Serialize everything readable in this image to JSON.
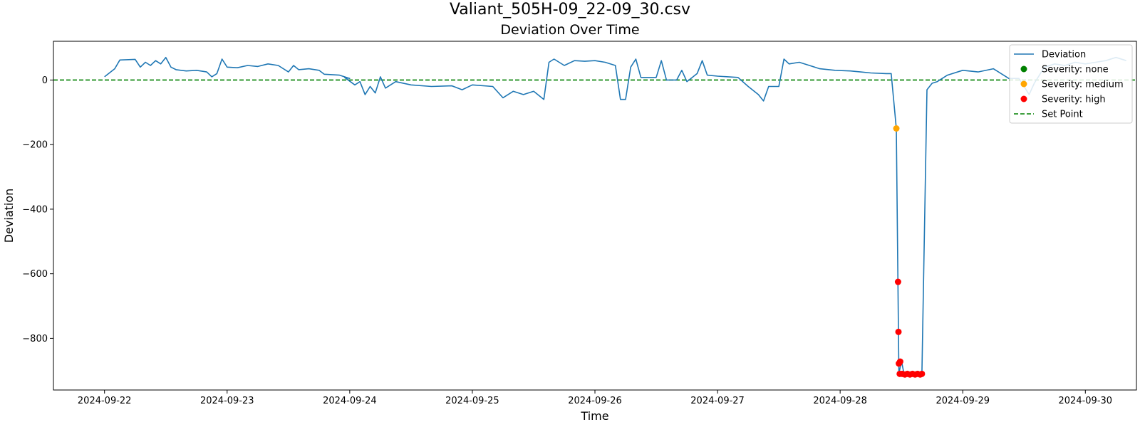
{
  "figure": {
    "suptitle": "Valiant_505H-09_22-09_30.csv"
  },
  "chart_data": {
    "type": "line",
    "title": "Deviation Over Time",
    "xlabel": "Time",
    "ylabel": "Deviation",
    "xlim": [
      "2024-09-21T14:00",
      "2024-09-30T10:00"
    ],
    "ylim": [
      -960,
      120
    ],
    "x_ticks": [
      "2024-09-22",
      "2024-09-23",
      "2024-09-24",
      "2024-09-25",
      "2024-09-26",
      "2024-09-27",
      "2024-09-28",
      "2024-09-29",
      "2024-09-30"
    ],
    "y_ticks": [
      0,
      -200,
      -400,
      -600,
      -800
    ],
    "grid": false,
    "legend_position": "top-right",
    "set_point": {
      "name": "Set Point",
      "value": 0,
      "color": "#008000",
      "style": "dashed"
    },
    "series": [
      {
        "name": "Deviation",
        "color": "#1f77b4",
        "points": [
          [
            "2024-09-22T00:00",
            10
          ],
          [
            "2024-09-22T02:00",
            35
          ],
          [
            "2024-09-22T03:00",
            62
          ],
          [
            "2024-09-22T06:00",
            64
          ],
          [
            "2024-09-22T07:00",
            40
          ],
          [
            "2024-09-22T08:00",
            55
          ],
          [
            "2024-09-22T09:00",
            45
          ],
          [
            "2024-09-22T10:00",
            60
          ],
          [
            "2024-09-22T11:00",
            50
          ],
          [
            "2024-09-22T12:00",
            70
          ],
          [
            "2024-09-22T13:00",
            40
          ],
          [
            "2024-09-22T14:00",
            32
          ],
          [
            "2024-09-22T16:00",
            28
          ],
          [
            "2024-09-22T18:00",
            30
          ],
          [
            "2024-09-22T20:00",
            25
          ],
          [
            "2024-09-22T21:00",
            10
          ],
          [
            "2024-09-22T22:00",
            20
          ],
          [
            "2024-09-22T23:00",
            65
          ],
          [
            "2024-09-23T00:00",
            40
          ],
          [
            "2024-09-23T02:00",
            38
          ],
          [
            "2024-09-23T04:00",
            45
          ],
          [
            "2024-09-23T06:00",
            42
          ],
          [
            "2024-09-23T08:00",
            50
          ],
          [
            "2024-09-23T10:00",
            45
          ],
          [
            "2024-09-23T12:00",
            25
          ],
          [
            "2024-09-23T13:00",
            45
          ],
          [
            "2024-09-23T14:00",
            32
          ],
          [
            "2024-09-23T16:00",
            35
          ],
          [
            "2024-09-23T18:00",
            30
          ],
          [
            "2024-09-23T19:00",
            18
          ],
          [
            "2024-09-23T22:00",
            15
          ],
          [
            "2024-09-24T00:00",
            5
          ],
          [
            "2024-09-23T23:00",
            8
          ],
          [
            "2024-09-24T01:00",
            -15
          ],
          [
            "2024-09-24T02:00",
            -5
          ],
          [
            "2024-09-24T03:00",
            -45
          ],
          [
            "2024-09-24T04:00",
            -20
          ],
          [
            "2024-09-24T05:00",
            -40
          ],
          [
            "2024-09-24T06:00",
            10
          ],
          [
            "2024-09-24T07:00",
            -25
          ],
          [
            "2024-09-24T09:00",
            -5
          ],
          [
            "2024-09-24T12:00",
            -15
          ],
          [
            "2024-09-24T16:00",
            -20
          ],
          [
            "2024-09-24T20:00",
            -18
          ],
          [
            "2024-09-24T22:00",
            -30
          ],
          [
            "2024-09-25T00:00",
            -15
          ],
          [
            "2024-09-25T04:00",
            -20
          ],
          [
            "2024-09-25T06:00",
            -55
          ],
          [
            "2024-09-25T08:00",
            -35
          ],
          [
            "2024-09-25T10:00",
            -45
          ],
          [
            "2024-09-25T12:00",
            -35
          ],
          [
            "2024-09-25T14:00",
            -60
          ],
          [
            "2024-09-25T15:00",
            55
          ],
          [
            "2024-09-25T16:00",
            65
          ],
          [
            "2024-09-25T18:00",
            45
          ],
          [
            "2024-09-25T20:00",
            60
          ],
          [
            "2024-09-25T22:00",
            58
          ],
          [
            "2024-09-26T00:00",
            60
          ],
          [
            "2024-09-26T02:00",
            55
          ],
          [
            "2024-09-26T04:00",
            45
          ],
          [
            "2024-09-26T05:00",
            -60
          ],
          [
            "2024-09-26T06:00",
            -60
          ],
          [
            "2024-09-26T07:00",
            40
          ],
          [
            "2024-09-26T08:00",
            65
          ],
          [
            "2024-09-26T09:00",
            8
          ],
          [
            "2024-09-26T12:00",
            8
          ],
          [
            "2024-09-26T13:00",
            60
          ],
          [
            "2024-09-26T14:00",
            0
          ],
          [
            "2024-09-26T16:00",
            0
          ],
          [
            "2024-09-26T17:00",
            30
          ],
          [
            "2024-09-26T18:00",
            -5
          ],
          [
            "2024-09-26T20:00",
            20
          ],
          [
            "2024-09-26T21:00",
            60
          ],
          [
            "2024-09-26T22:00",
            15
          ],
          [
            "2024-09-27T00:00",
            12
          ],
          [
            "2024-09-27T04:00",
            8
          ],
          [
            "2024-09-27T06:00",
            -20
          ],
          [
            "2024-09-27T08:00",
            -45
          ],
          [
            "2024-09-27T09:00",
            -65
          ],
          [
            "2024-09-27T10:00",
            -20
          ],
          [
            "2024-09-27T12:00",
            -20
          ],
          [
            "2024-09-27T13:00",
            65
          ],
          [
            "2024-09-27T14:00",
            50
          ],
          [
            "2024-09-27T16:00",
            55
          ],
          [
            "2024-09-27T18:00",
            45
          ],
          [
            "2024-09-27T20:00",
            35
          ],
          [
            "2024-09-27T23:00",
            30
          ],
          [
            "2024-09-28T02:00",
            28
          ],
          [
            "2024-09-28T04:00",
            25
          ],
          [
            "2024-09-28T06:00",
            22
          ],
          [
            "2024-09-28T09:00",
            20
          ],
          [
            "2024-09-28T10:00",
            20
          ],
          [
            "2024-09-28T11:00",
            -150
          ],
          [
            "2024-09-28T11:30",
            -910
          ],
          [
            "2024-09-28T12:00",
            -870
          ],
          [
            "2024-09-28T12:30",
            -910
          ],
          [
            "2024-09-28T16:00",
            -910
          ],
          [
            "2024-09-28T17:00",
            -30
          ],
          [
            "2024-09-28T18:00",
            -10
          ],
          [
            "2024-09-28T19:00",
            -5
          ],
          [
            "2024-09-28T21:00",
            15
          ],
          [
            "2024-09-29T00:00",
            30
          ],
          [
            "2024-09-29T03:00",
            25
          ],
          [
            "2024-09-29T06:00",
            35
          ],
          [
            "2024-09-29T09:00",
            5
          ],
          [
            "2024-09-29T11:00",
            5
          ],
          [
            "2024-09-29T13:00",
            -45
          ],
          [
            "2024-09-29T14:00",
            -10
          ],
          [
            "2024-09-29T16:00",
            40
          ],
          [
            "2024-09-29T18:00",
            50
          ],
          [
            "2024-09-29T20:00",
            45
          ],
          [
            "2024-09-29T22:00",
            55
          ],
          [
            "2024-09-30T00:00",
            50
          ],
          [
            "2024-09-30T02:00",
            55
          ],
          [
            "2024-09-30T04:00",
            60
          ],
          [
            "2024-09-30T06:00",
            70
          ],
          [
            "2024-09-30T08:00",
            60
          ]
        ]
      },
      {
        "name": "Severity: none",
        "color": "#008000",
        "points": []
      },
      {
        "name": "Severity: medium",
        "color": "#ffa500",
        "points": [
          [
            "2024-09-28T11:00",
            -150
          ]
        ]
      },
      {
        "name": "Severity: high",
        "color": "#ff0000",
        "points": [
          [
            "2024-09-28T11:20",
            -625
          ],
          [
            "2024-09-28T11:25",
            -780
          ],
          [
            "2024-09-28T11:30",
            -878
          ],
          [
            "2024-09-28T11:45",
            -872
          ],
          [
            "2024-09-28T11:40",
            -910
          ],
          [
            "2024-09-28T12:10",
            -910
          ],
          [
            "2024-09-28T12:40",
            -912
          ],
          [
            "2024-09-28T13:10",
            -910
          ],
          [
            "2024-09-28T13:40",
            -912
          ],
          [
            "2024-09-28T14:10",
            -910
          ],
          [
            "2024-09-28T14:40",
            -912
          ],
          [
            "2024-09-28T15:10",
            -910
          ],
          [
            "2024-09-28T15:40",
            -912
          ],
          [
            "2024-09-28T16:00",
            -910
          ]
        ]
      }
    ],
    "legend": [
      "Deviation",
      "Severity: none",
      "Severity: medium",
      "Severity: high",
      "Set Point"
    ]
  }
}
